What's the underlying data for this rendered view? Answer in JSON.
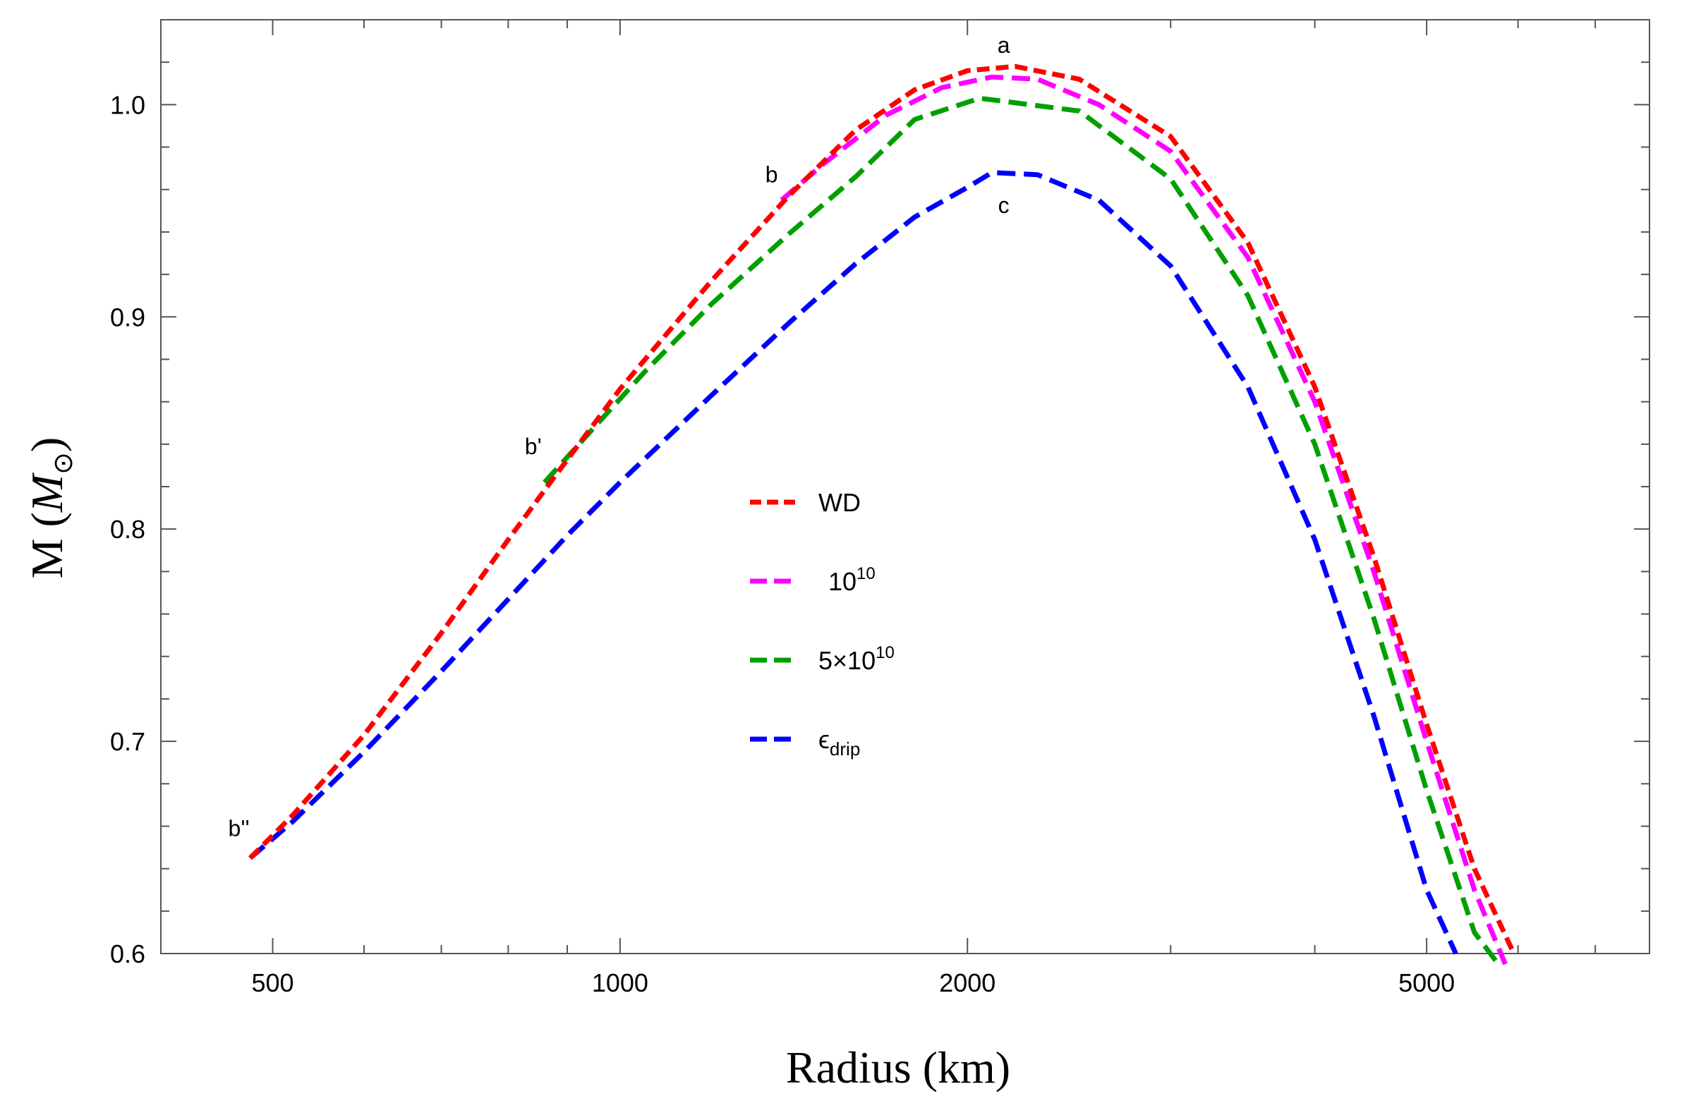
{
  "chart_data": {
    "type": "line",
    "title": "",
    "xlabel": "Radius (km)",
    "ylabel": "M",
    "ylabel_unit": "M",
    "ylabel_unit_sub": "⊙",
    "x_scale": "log",
    "xlim": [
      400,
      7800
    ],
    "ylim": [
      0.6,
      1.04
    ],
    "x_ticks": [
      500,
      1000,
      2000,
      5000
    ],
    "x_tick_labels": [
      "500",
      "1000",
      "2000",
      "5000"
    ],
    "y_ticks": [
      0.6,
      0.7,
      0.8,
      0.9,
      1.0
    ],
    "y_tick_labels": [
      "0.6",
      "0.7",
      "0.8",
      "0.9",
      "1.0"
    ],
    "series": [
      {
        "name": "WD",
        "color": "#ff0000",
        "dash": "short",
        "x": [
          478,
          520,
          600,
          700,
          800,
          870,
          1000,
          1200,
          1400,
          1600,
          1800,
          2000,
          2200,
          2500,
          3000,
          3500,
          4000,
          4500,
          5000,
          5500,
          5950
        ],
        "y": [
          0.645,
          0.665,
          0.703,
          0.751,
          0.795,
          0.822,
          0.866,
          0.917,
          0.957,
          0.988,
          1.007,
          1.016,
          1.018,
          1.012,
          0.985,
          0.935,
          0.867,
          0.787,
          0.708,
          0.64,
          0.6
        ]
      },
      {
        "name": "10",
        "name_sup": "10",
        "color": "#ff00ff",
        "dash": "long",
        "x": [
          1380,
          1500,
          1700,
          1900,
          2100,
          2300,
          2600,
          3000,
          3500,
          4000,
          4500,
          5000,
          5500,
          5850
        ],
        "y": [
          0.955,
          0.972,
          0.995,
          1.008,
          1.013,
          1.012,
          1.0,
          0.978,
          0.928,
          0.86,
          0.78,
          0.7,
          0.63,
          0.595
        ]
      },
      {
        "name": "5×10",
        "name_sup": "10",
        "color": "#00a000",
        "dash": "long",
        "x": [
          860,
          950,
          1050,
          1200,
          1400,
          1600,
          1800,
          2050,
          2500,
          3000,
          3500,
          4000,
          4500,
          5000,
          5500,
          5750
        ],
        "y": [
          0.822,
          0.848,
          0.874,
          0.906,
          0.939,
          0.966,
          0.993,
          1.003,
          0.997,
          0.965,
          0.91,
          0.84,
          0.758,
          0.677,
          0.61,
          0.596
        ]
      },
      {
        "name": "ϵ",
        "name_sub": "drip",
        "color": "#0000ff",
        "dash": "long",
        "x": [
          478,
          520,
          600,
          700,
          800,
          900,
          1000,
          1200,
          1400,
          1600,
          1800,
          2000,
          2100,
          2300,
          2600,
          3000,
          3500,
          4000,
          4500,
          5000,
          5300
        ],
        "y": [
          0.645,
          0.662,
          0.695,
          0.733,
          0.767,
          0.797,
          0.822,
          0.863,
          0.897,
          0.925,
          0.947,
          0.961,
          0.968,
          0.967,
          0.955,
          0.924,
          0.867,
          0.795,
          0.712,
          0.63,
          0.6
        ]
      }
    ],
    "annotations": [
      {
        "text": "a",
        "x": 2150,
        "y": 1.023
      },
      {
        "text": "b",
        "x": 1380,
        "y": 0.958
      },
      {
        "text": "b'",
        "x": 860,
        "y": 0.83
      },
      {
        "text": "b''",
        "x": 478,
        "y": 0.65
      },
      {
        "text": "c",
        "x": 2150,
        "y": 0.955
      }
    ],
    "legend_position": "center"
  }
}
